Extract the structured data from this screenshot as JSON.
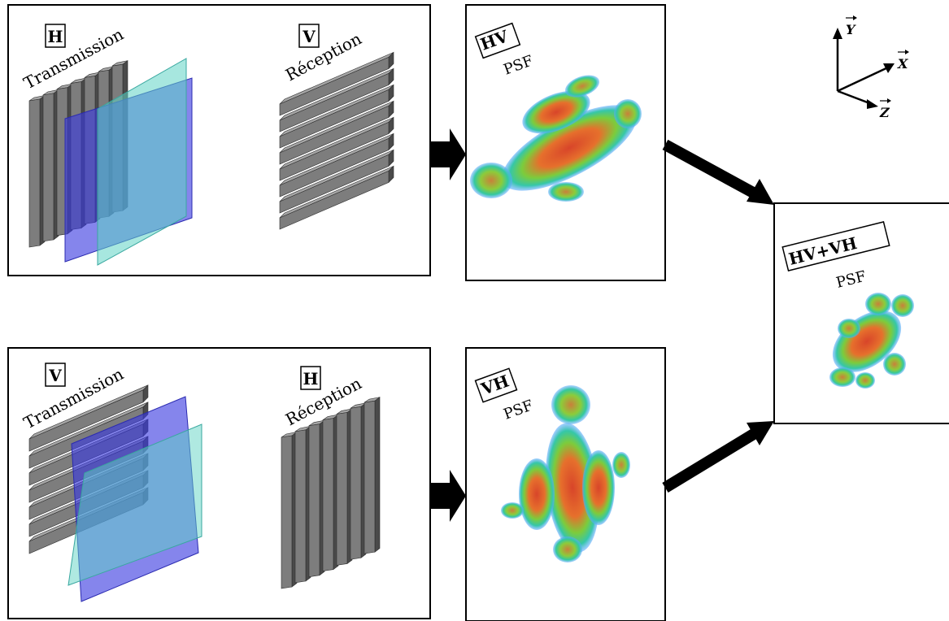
{
  "colors": {
    "element_front": "#7d7d7d",
    "element_side": "#4a4a4a",
    "element_top": "#a6a6a6",
    "plane_blue": "#3a3ae0",
    "plane_cyan": "#5fd4c4",
    "psf_outer": "#4fb8ff",
    "psf_mid": "#5ad65a",
    "psf_inner": "#e0502a"
  },
  "panels": {
    "hv_setup": {
      "tx_letter": "H",
      "tx_label": "Transmission",
      "rx_letter": "V",
      "rx_label": "Réception"
    },
    "vh_setup": {
      "tx_letter": "V",
      "tx_label": "Transmission",
      "rx_letter": "H",
      "rx_label": "Réception"
    },
    "hv_psf": {
      "tag": "HV",
      "label": "PSF"
    },
    "vh_psf": {
      "tag": "VH",
      "label": "PSF"
    },
    "combined_psf": {
      "tag": "HV+VH",
      "label": "PSF"
    }
  },
  "axes": {
    "y": "Y",
    "x": "X",
    "z": "Z"
  }
}
